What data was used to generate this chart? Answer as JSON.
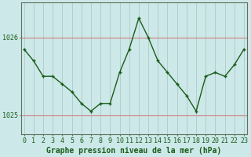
{
  "x": [
    0,
    1,
    2,
    3,
    4,
    5,
    6,
    7,
    8,
    9,
    10,
    11,
    12,
    13,
    14,
    15,
    16,
    17,
    18,
    19,
    20,
    21,
    22,
    23
  ],
  "y": [
    1025.85,
    1025.7,
    1025.5,
    1025.5,
    1025.4,
    1025.3,
    1025.15,
    1025.05,
    1025.15,
    1025.15,
    1025.55,
    1025.85,
    1026.25,
    1026.0,
    1025.7,
    1025.55,
    1025.4,
    1025.25,
    1025.05,
    1025.5,
    1025.55,
    1025.5,
    1025.65,
    1025.85
  ],
  "ylim": [
    1024.75,
    1026.45
  ],
  "yticks": [
    1025,
    1026
  ],
  "xlabel": "Graphe pression niveau de la mer (hPa)",
  "line_color": "#1a5c1a",
  "marker_color": "#1a5c1a",
  "bg_color": "#cce8e8",
  "hgrid_color": "#d08080",
  "vgrid_color": "#b0c8c8",
  "xlabel_color": "#1a5c1a",
  "xlabel_fontsize": 7.0,
  "tick_color": "#1a5c1a",
  "tick_fontsize": 6.0
}
